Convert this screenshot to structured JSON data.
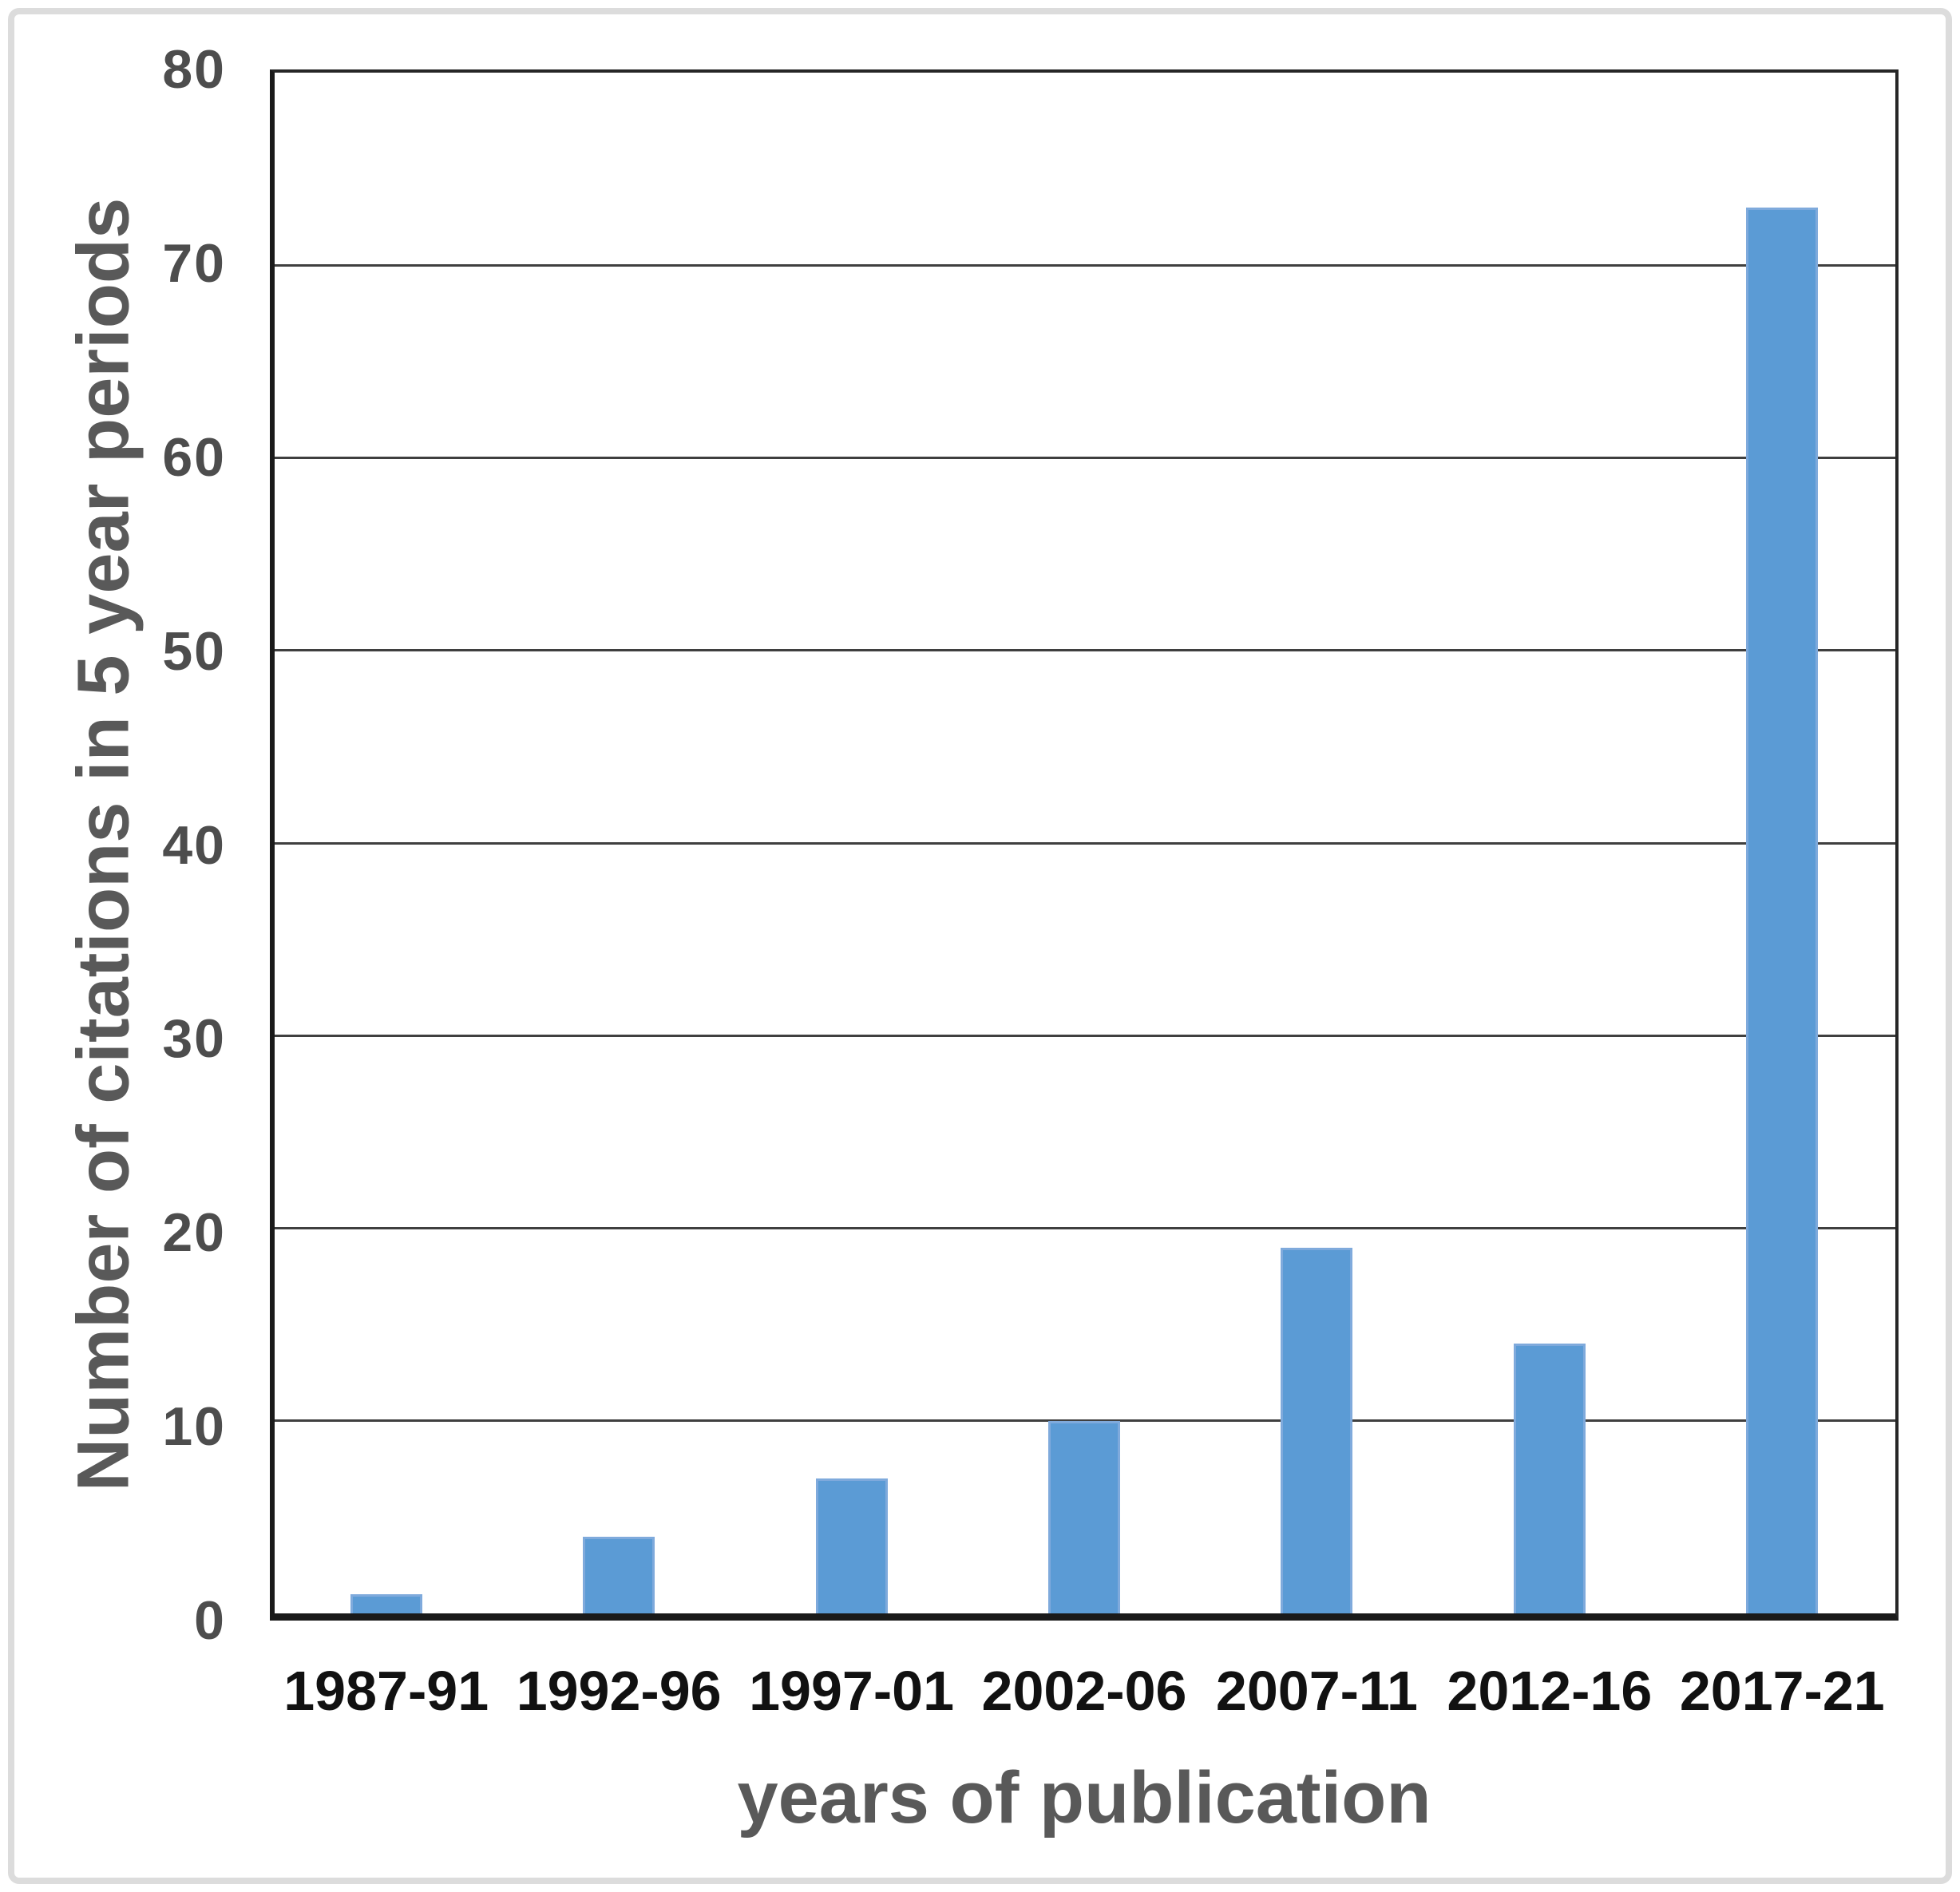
{
  "chart_data": {
    "type": "bar",
    "categories": [
      "1987-91",
      "1992-96",
      "1997-01",
      "2002-06",
      "2007-11",
      "2012-16",
      "2017-21"
    ],
    "values": [
      1,
      4,
      7,
      10,
      19,
      14,
      73
    ],
    "title": "",
    "xlabel": "years of publication",
    "ylabel": "Number of citations in 5 year periods",
    "ylim": [
      0,
      80
    ],
    "yticks": [
      0,
      10,
      20,
      30,
      40,
      50,
      60,
      70,
      80
    ],
    "grid": "horizontal gridlines on, boxed plot area",
    "legend_position": "none",
    "bar_color": "#5B9BD5",
    "bar_edge_color": "#7FAADC",
    "axis_box_color": "#262626",
    "gridline_color": "#3f3f3f",
    "ytick_label_color": "#4d4d4d",
    "xtick_label_color": "#111111",
    "axis_title_color": "#595959",
    "frame_color": "#dcdcdc"
  }
}
